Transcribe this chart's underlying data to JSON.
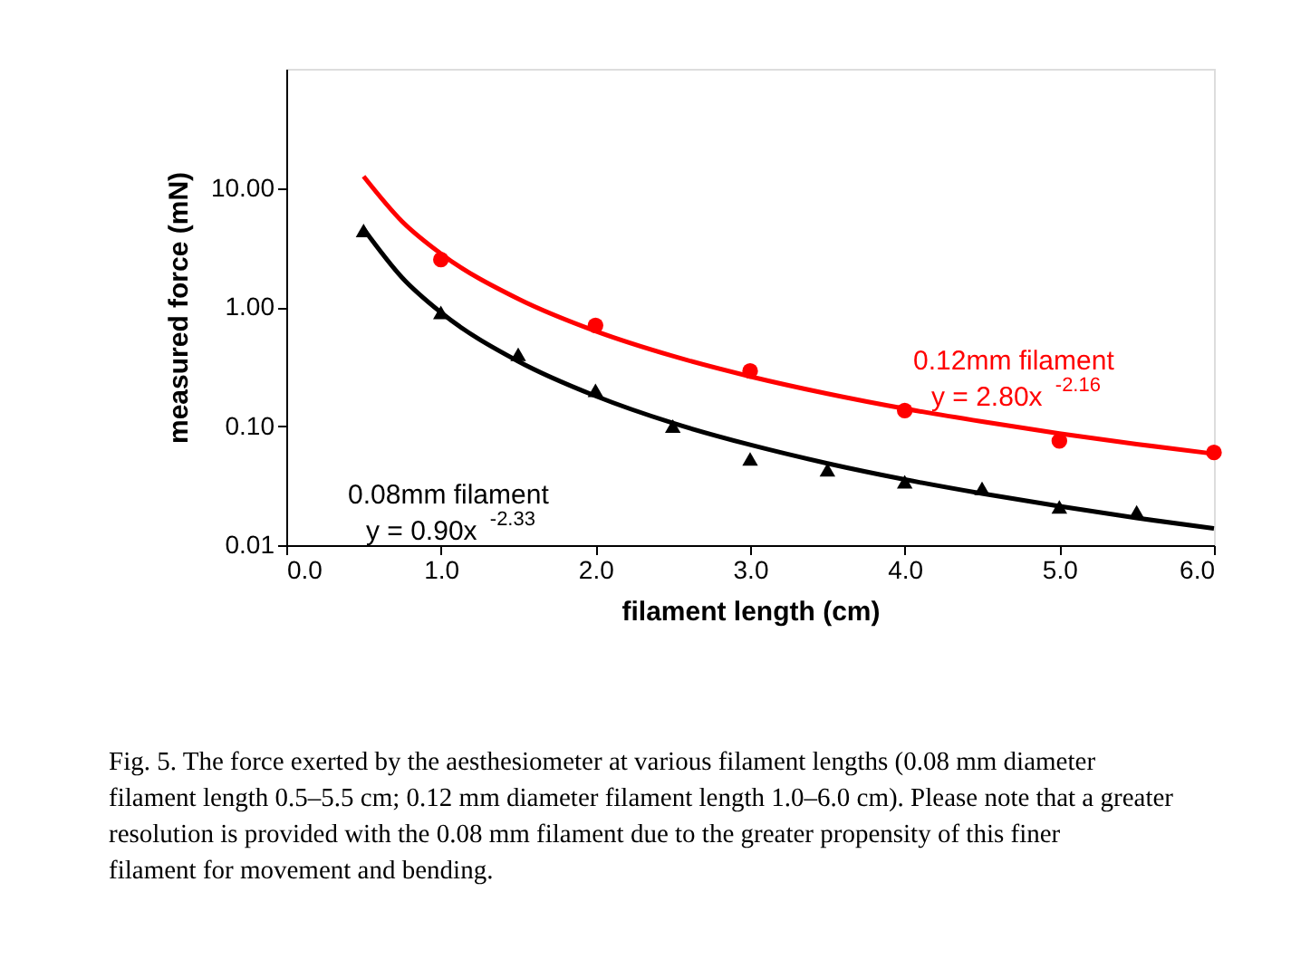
{
  "chart_data": {
    "type": "scatter",
    "xlabel": "filament length (cm)",
    "ylabel": "measured force (mN)",
    "log": "y",
    "grid": false,
    "xlim": [
      0,
      6
    ],
    "ylim": [
      0.01,
      100
    ],
    "xticks": [
      {
        "value": 0,
        "label": "0.0"
      },
      {
        "value": 1,
        "label": "1.0"
      },
      {
        "value": 2,
        "label": "2.0"
      },
      {
        "value": 3,
        "label": "3.0"
      },
      {
        "value": 4,
        "label": "4.0"
      },
      {
        "value": 5,
        "label": "5.0"
      },
      {
        "value": 6,
        "label": "6.0"
      }
    ],
    "yticks": [
      {
        "value": 0.01,
        "label": "0.01"
      },
      {
        "value": 0.1,
        "label": "0.10"
      },
      {
        "value": 1,
        "label": "1.00"
      },
      {
        "value": 10,
        "label": "10.00"
      }
    ],
    "series": [
      {
        "name": "0.08mm filament",
        "type": "scatter",
        "marker": "triangle",
        "color": "#000000",
        "x": [
          0.5,
          1.0,
          1.5,
          2.0,
          2.5,
          3.0,
          3.5,
          4.0,
          4.5,
          5.0,
          5.5
        ],
        "values": [
          4.4,
          0.9,
          0.4,
          0.2,
          0.1,
          0.053,
          0.043,
          0.034,
          0.03,
          0.021,
          0.019
        ]
      },
      {
        "name": "0.12mm filament",
        "type": "scatter",
        "marker": "circle",
        "color": "#ff0000",
        "x": [
          1,
          2,
          3,
          4,
          5,
          6
        ],
        "values": [
          2.5,
          0.7,
          0.29,
          0.135,
          0.075,
          0.06
        ]
      },
      {
        "type": "line",
        "line_style": "solid",
        "color": "#000000",
        "x": [
          0.5,
          0.75,
          1,
          1.5,
          2,
          2.5,
          3,
          3.5,
          4,
          4.5,
          5,
          5.5,
          6
        ],
        "values": [
          4.53,
          1.76,
          0.9,
          0.35,
          0.179,
          0.106,
          0.0696,
          0.0486,
          0.0356,
          0.0271,
          0.0212,
          0.0169,
          0.0138
        ]
      },
      {
        "type": "line",
        "line_style": "solid",
        "color": "#ff0000",
        "x": [
          0.5,
          0.75,
          1,
          1.5,
          2,
          2.5,
          3,
          3.5,
          4,
          4.5,
          5,
          5.5,
          6
        ],
        "values": [
          12.5,
          5.21,
          2.8,
          1.17,
          0.627,
          0.387,
          0.261,
          0.187,
          0.14,
          0.109,
          0.0866,
          0.0705,
          0.0585
        ]
      }
    ],
    "annotations": [
      "y = 0.90x$^{-2.33}$",
      "y = 2.80x$^{-2.16}$",
      "Fig. 5. The force exerted by the aesthesiometer at various filament lengths (0.08 mm diameter filament length 0.5–5.5 cm; 0.12 mm diameter filament length 1.0–6.0 cm). Please note that a greater resolution is provided with the 0.08 mm filament due to the greater propensity of this finer filament for movement and bending."
    ]
  }
}
